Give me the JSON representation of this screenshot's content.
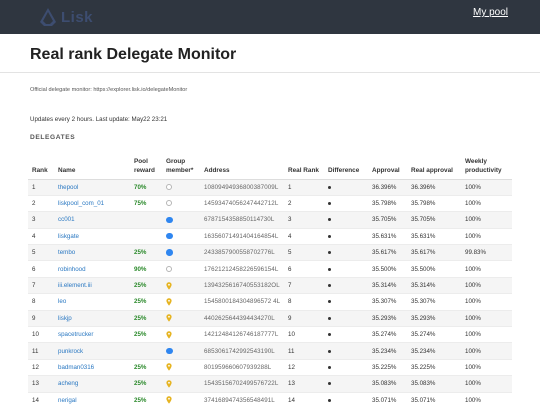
{
  "header": {
    "brand": "Lisk",
    "my_pool_label": "My pool",
    "colors": {
      "bar": "#2f3640",
      "brand": "#3d4d70"
    }
  },
  "page": {
    "title": "Real rank Delegate Monitor",
    "official_text": "Official delegate monitor: https://explorer.lisk.io/delegateMonitor",
    "updates_text": "Updates every 2 hours. Last update: May22 23:21",
    "section_label": "DELEGATES"
  },
  "table": {
    "headers": {
      "rank": "Rank",
      "name": "Name",
      "pool_reward": "Pool reward",
      "group_member": "Group member*",
      "address": "Address",
      "real_rank": "Real Rank",
      "difference": "Difference",
      "approval": "Approval",
      "real_approval": "Real approval",
      "weekly_productivity": "Weekly productivity"
    },
    "member_icon_names": {
      "no": "empty-circle-icon",
      "yes": "blue-dot-icon",
      "pin": "location-pin-icon"
    },
    "rows": [
      {
        "rank": "1",
        "name": "thepool",
        "reward": "70%",
        "member": "no",
        "address": "10809494936800387009L",
        "real_rank": "1",
        "approval": "36.396%",
        "real_approval": "36.396%",
        "productivity": "100%"
      },
      {
        "rank": "2",
        "name": "liskpool_com_01",
        "reward": "75%",
        "member": "no",
        "address": "14593474056247442712L",
        "real_rank": "2",
        "approval": "35.798%",
        "real_approval": "35.798%",
        "productivity": "100%"
      },
      {
        "rank": "3",
        "name": "cc001",
        "reward": "",
        "member": "yes",
        "address": "6787154358850114730L",
        "real_rank": "3",
        "approval": "35.705%",
        "real_approval": "35.705%",
        "productivity": "100%"
      },
      {
        "rank": "4",
        "name": "liskgate",
        "reward": "",
        "member": "yes",
        "address": "16356071491404164854L",
        "real_rank": "4",
        "approval": "35.631%",
        "real_approval": "35.631%",
        "productivity": "100%"
      },
      {
        "rank": "5",
        "name": "tembo",
        "reward": "25%",
        "member": "yes",
        "address": "2433857900558702776L",
        "real_rank": "5",
        "approval": "35.617%",
        "real_approval": "35.617%",
        "productivity": "99.83%"
      },
      {
        "rank": "6",
        "name": "robinhood",
        "reward": "90%",
        "member": "no",
        "address": "17621212458226596154L",
        "real_rank": "6",
        "approval": "35.500%",
        "real_approval": "35.500%",
        "productivity": "100%"
      },
      {
        "rank": "7",
        "name": "iii.element.iii",
        "reward": "25%",
        "member": "pin",
        "address": "1394325616740553182OL",
        "real_rank": "7",
        "approval": "35.314%",
        "real_approval": "35.314%",
        "productivity": "100%"
      },
      {
        "rank": "8",
        "name": "leo",
        "reward": "25%",
        "member": "pin",
        "address": "1545800184304896572 4L",
        "real_rank": "8",
        "approval": "35.307%",
        "real_approval": "35.307%",
        "productivity": "100%"
      },
      {
        "rank": "9",
        "name": "liskjp",
        "reward": "25%",
        "member": "pin",
        "address": "4402625644394434270L",
        "real_rank": "9",
        "approval": "35.293%",
        "real_approval": "35.293%",
        "productivity": "100%"
      },
      {
        "rank": "10",
        "name": "spacetrucker",
        "reward": "25%",
        "member": "pin",
        "address": "14212484126746187777L",
        "real_rank": "10",
        "approval": "35.274%",
        "real_approval": "35.274%",
        "productivity": "100%"
      },
      {
        "rank": "11",
        "name": "punkrock",
        "reward": "",
        "member": "yes",
        "address": "6853061742992543190L",
        "real_rank": "11",
        "approval": "35.234%",
        "real_approval": "35.234%",
        "productivity": "100%"
      },
      {
        "rank": "12",
        "name": "badman0316",
        "reward": "25%",
        "member": "pin",
        "address": "801959660607939288L",
        "real_rank": "12",
        "approval": "35.225%",
        "real_approval": "35.225%",
        "productivity": "100%"
      },
      {
        "rank": "13",
        "name": "acheng",
        "reward": "25%",
        "member": "pin",
        "address": "15435156702499576722L",
        "real_rank": "13",
        "approval": "35.083%",
        "real_approval": "35.083%",
        "productivity": "100%"
      },
      {
        "rank": "14",
        "name": "nerigal",
        "reward": "25%",
        "member": "pin",
        "address": "3741689474356548491L",
        "real_rank": "14",
        "approval": "35.071%",
        "real_approval": "35.071%",
        "productivity": "100%"
      }
    ]
  }
}
